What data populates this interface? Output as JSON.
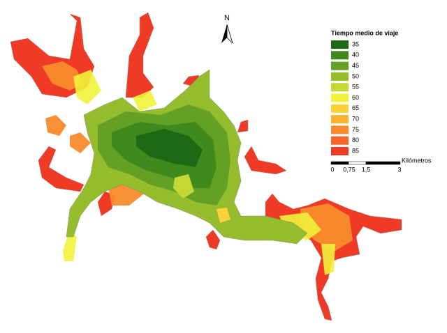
{
  "north_arrow": {
    "label": "N"
  },
  "legend": {
    "title": "Tiempo medio de viaje",
    "items": [
      {
        "label": "35",
        "color": "#1c6a14"
      },
      {
        "label": "40",
        "color": "#3f8a1d"
      },
      {
        "label": "45",
        "color": "#64a024"
      },
      {
        "label": "50",
        "color": "#93bd2c"
      },
      {
        "label": "55",
        "color": "#c2d834"
      },
      {
        "label": "60",
        "color": "#f2f23a"
      },
      {
        "label": "65",
        "color": "#fbd23a"
      },
      {
        "label": "70",
        "color": "#fbb032"
      },
      {
        "label": "75",
        "color": "#f98b2c"
      },
      {
        "label": "80",
        "color": "#f66428"
      },
      {
        "label": "85",
        "color": "#ef3b25"
      }
    ]
  },
  "scale_bar": {
    "unit": "Kilómetros",
    "labels": [
      "0",
      "0,75",
      "1,5",
      "3"
    ]
  }
}
